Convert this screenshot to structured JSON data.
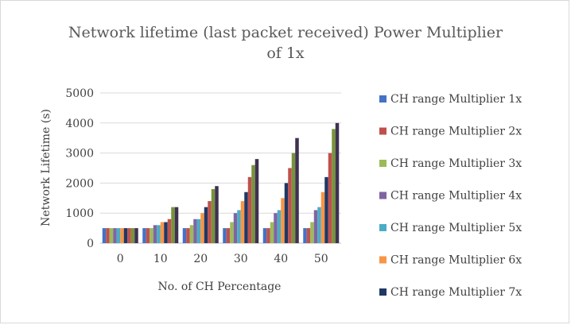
{
  "chart_data": {
    "type": "bar",
    "title": "Network lifetime (last packet received) Power Multiplier of 1x",
    "title_lines": [
      "Network lifetime (last packet received) Power Multiplier",
      "of 1x"
    ],
    "xlabel": "No. of CH Percentage",
    "ylabel": "Network Lifetime (s)",
    "categories": [
      "0",
      "10",
      "20",
      "30",
      "40",
      "50"
    ],
    "ylim": [
      0,
      5000
    ],
    "yticks": [
      0,
      1000,
      2000,
      3000,
      4000,
      5000
    ],
    "grid": true,
    "legend_position": "right",
    "series": [
      {
        "name": "CH range Multiplier 1x",
        "color": "#4472c4",
        "values": [
          500,
          500,
          500,
          500,
          500,
          500
        ]
      },
      {
        "name": "CH range Multiplier 2x",
        "color": "#c0504d",
        "values": [
          500,
          500,
          500,
          500,
          500,
          500
        ]
      },
      {
        "name": "CH range Multiplier 3x",
        "color": "#9bbb59",
        "values": [
          500,
          500,
          600,
          700,
          700,
          700
        ]
      },
      {
        "name": "CH range Multiplier 4x",
        "color": "#8064a2",
        "values": [
          500,
          600,
          800,
          1000,
          1000,
          1100
        ]
      },
      {
        "name": "CH range Multiplier 5x",
        "color": "#4bacc6",
        "values": [
          500,
          600,
          800,
          1100,
          1100,
          1200
        ]
      },
      {
        "name": "CH range Multiplier 6x",
        "color": "#f79646",
        "values": [
          500,
          700,
          1000,
          1400,
          1500,
          1700
        ]
      },
      {
        "name": "CH range Multiplier 7x",
        "color": "#1f3864",
        "values": [
          500,
          700,
          1200,
          1700,
          2000,
          2200
        ]
      },
      {
        "name": "",
        "color": "#c0504d",
        "values": [
          500,
          800,
          1400,
          2200,
          2500,
          3000
        ]
      },
      {
        "name": "",
        "color": "#77933c",
        "values": [
          500,
          1200,
          1800,
          2600,
          3000,
          3800
        ]
      },
      {
        "name": "",
        "color": "#3f3151",
        "values": [
          500,
          1200,
          1900,
          2800,
          3500,
          4000
        ]
      }
    ]
  }
}
